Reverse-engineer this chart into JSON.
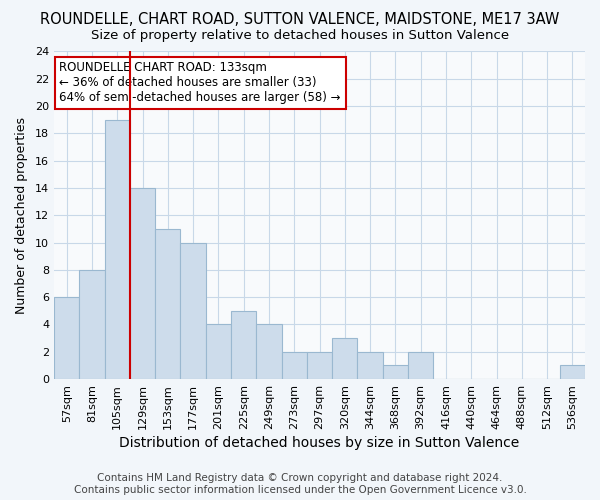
{
  "title": "ROUNDELLE, CHART ROAD, SUTTON VALENCE, MAIDSTONE, ME17 3AW",
  "subtitle": "Size of property relative to detached houses in Sutton Valence",
  "xlabel": "Distribution of detached houses by size in Sutton Valence",
  "ylabel": "Number of detached properties",
  "footer_line1": "Contains HM Land Registry data © Crown copyright and database right 2024.",
  "footer_line2": "Contains public sector information licensed under the Open Government Licence v3.0.",
  "bins": [
    "57sqm",
    "81sqm",
    "105sqm",
    "129sqm",
    "153sqm",
    "177sqm",
    "201sqm",
    "225sqm",
    "249sqm",
    "273sqm",
    "297sqm",
    "320sqm",
    "344sqm",
    "368sqm",
    "392sqm",
    "416sqm",
    "440sqm",
    "464sqm",
    "488sqm",
    "512sqm",
    "536sqm"
  ],
  "values": [
    6,
    8,
    19,
    14,
    11,
    10,
    4,
    5,
    4,
    2,
    2,
    3,
    2,
    1,
    2,
    0,
    0,
    0,
    0,
    0,
    1
  ],
  "bar_color": "#cddceb",
  "bar_edge_color": "#9ab8d0",
  "red_line_color": "#cc0000",
  "red_line_x": 3,
  "annotation_line1": "ROUNDELLE CHART ROAD: 133sqm",
  "annotation_line2": "← 36% of detached houses are smaller (33)",
  "annotation_line3": "64% of semi-detached houses are larger (58) →",
  "annotation_box_color": "white",
  "annotation_box_edge_color": "#cc0000",
  "ylim": [
    0,
    24
  ],
  "yticks": [
    0,
    2,
    4,
    6,
    8,
    10,
    12,
    14,
    16,
    18,
    20,
    22,
    24
  ],
  "title_fontsize": 10.5,
  "subtitle_fontsize": 9.5,
  "xlabel_fontsize": 10,
  "ylabel_fontsize": 9,
  "tick_fontsize": 8,
  "annotation_fontsize": 8.5,
  "footer_fontsize": 7.5,
  "background_color": "#f2f6fa",
  "plot_background_color": "#f8fafc",
  "grid_color": "#c8d8e8"
}
